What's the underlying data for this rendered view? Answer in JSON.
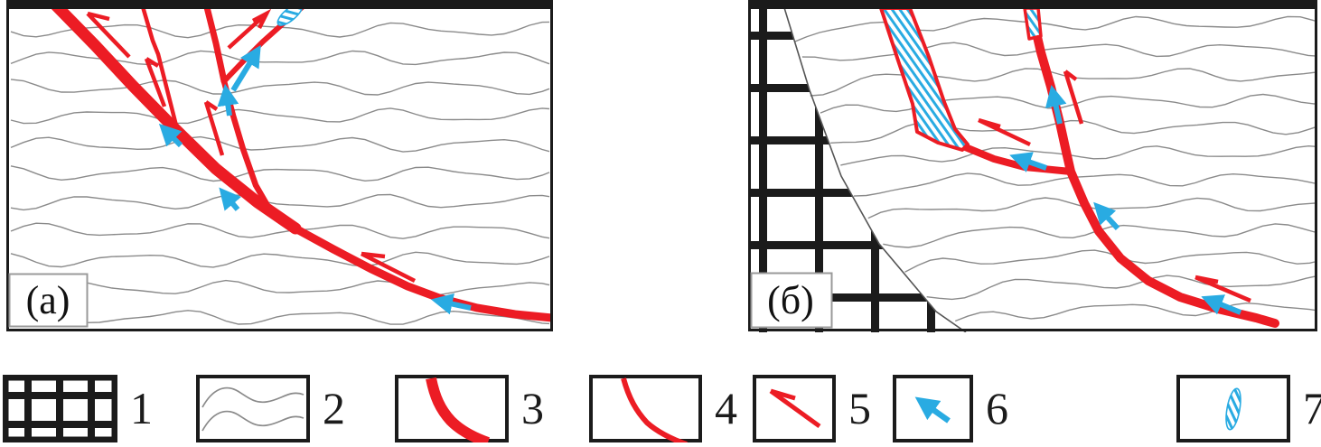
{
  "figure": {
    "panels": [
      {
        "label": "(а)"
      },
      {
        "label": "(б)"
      }
    ],
    "colors": {
      "red": "#EC1C24",
      "blue": "#29ABE2",
      "gray": "#8A8A8A",
      "ink": "#1B1B1B"
    }
  },
  "legend": {
    "items": [
      {
        "number": "1",
        "icon": "basement-grid"
      },
      {
        "number": "2",
        "icon": "layered-strata"
      },
      {
        "number": "3",
        "icon": "major-fault"
      },
      {
        "number": "4",
        "icon": "minor-fault"
      },
      {
        "number": "5",
        "icon": "displacement-half-arrow"
      },
      {
        "number": "6",
        "icon": "fluid-flow-arrow"
      },
      {
        "number": "7",
        "icon": "mineralized-vein-lens"
      }
    ]
  }
}
